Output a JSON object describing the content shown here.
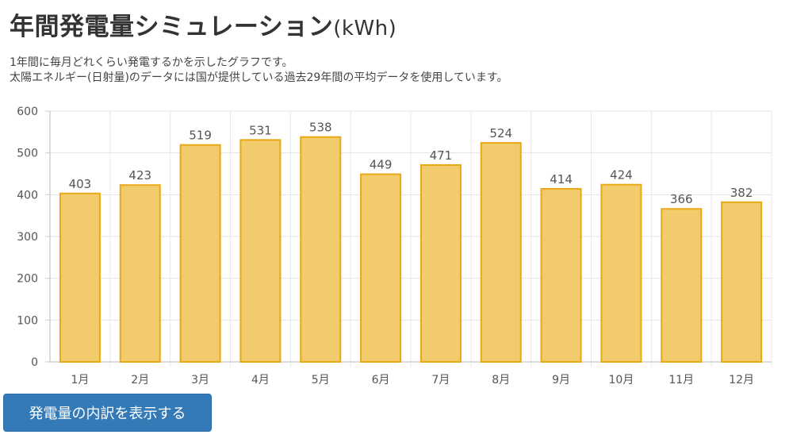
{
  "header": {
    "title": "年間発電量シミュレーション",
    "unit": "(kWh)"
  },
  "description": {
    "line1": "1年間に毎月どれくらい発電するかを示したグラフです。",
    "line2": "太陽エネルギー(日射量)のデータには国が提供している過去29年間の平均データを使用しています。"
  },
  "button": {
    "label": "発電量の内訳を表示する",
    "color": "#337ab7"
  },
  "chart_data": {
    "type": "bar",
    "categories": [
      "1月",
      "2月",
      "3月",
      "4月",
      "5月",
      "6月",
      "7月",
      "8月",
      "9月",
      "10月",
      "11月",
      "12月"
    ],
    "values": [
      403,
      423,
      519,
      531,
      538,
      449,
      471,
      524,
      414,
      424,
      366,
      382
    ],
    "ylim": [
      0,
      600
    ],
    "yticks": [
      0,
      100,
      200,
      300,
      400,
      500,
      600
    ],
    "grid": true,
    "data_labels": true,
    "bar_fill": "#f2cb6c",
    "bar_stroke": "#e8a914"
  }
}
